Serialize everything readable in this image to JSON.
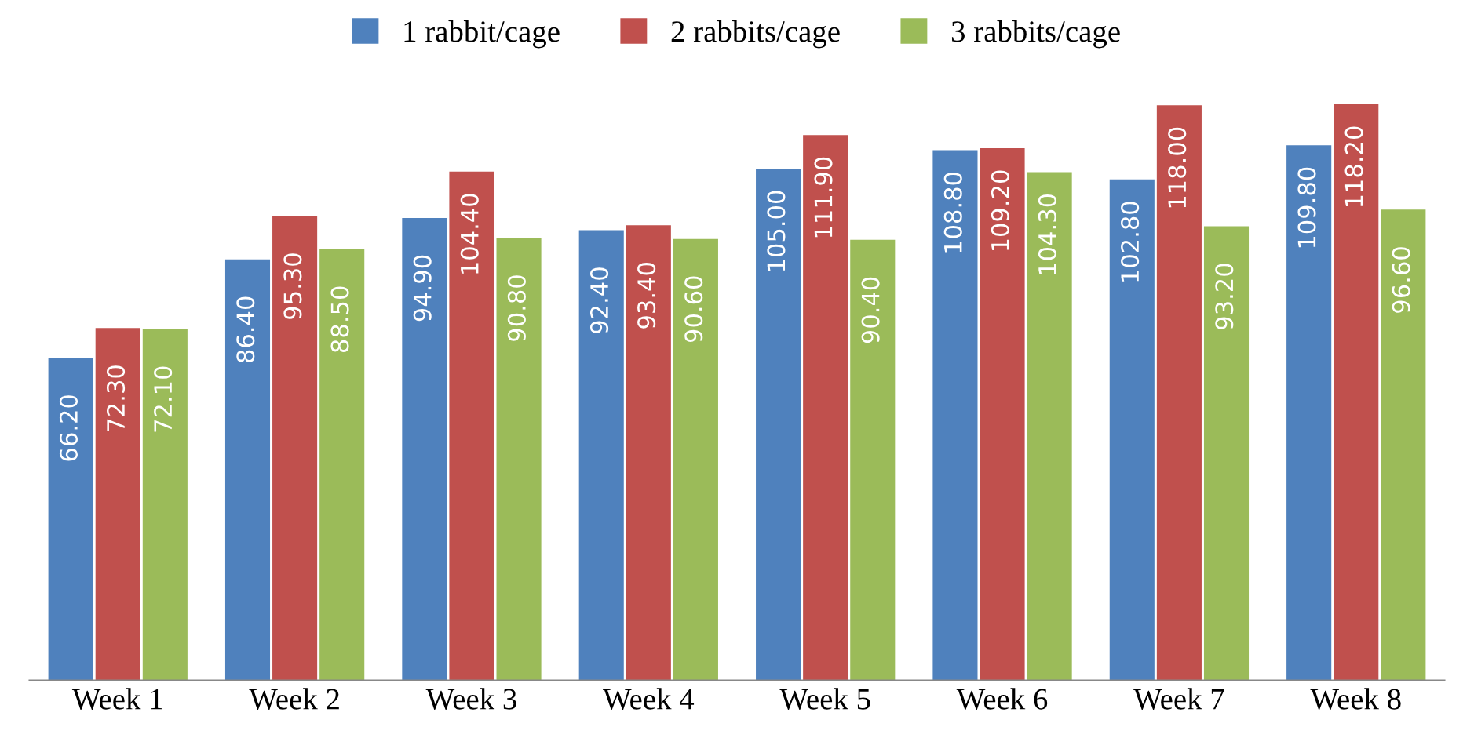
{
  "chart_data": {
    "type": "bar",
    "categories": [
      "Week 1",
      "Week 2",
      "Week 3",
      "Week 4",
      "Week 5",
      "Week 6",
      "Week 7",
      "Week 8"
    ],
    "series": [
      {
        "name": "1 rabbit/cage",
        "color": "#4f81bd",
        "values": [
          66.2,
          86.4,
          94.9,
          92.4,
          105.0,
          108.8,
          102.8,
          109.8
        ],
        "value_labels": [
          "66.20",
          "86.40",
          "94.90",
          "92.40",
          "105.00",
          "108.80",
          "102.80",
          "109.80"
        ]
      },
      {
        "name": "2 rabbits/cage",
        "color": "#c0504d",
        "values": [
          72.3,
          95.3,
          104.4,
          93.4,
          111.9,
          109.2,
          118.0,
          118.2
        ],
        "value_labels": [
          "72.30",
          "95.30",
          "104.40",
          "93.40",
          "111.90",
          "109.20",
          "118.00",
          "118.20"
        ]
      },
      {
        "name": "3 rabbits/cage",
        "color": "#9bbb59",
        "values": [
          72.1,
          88.5,
          90.8,
          90.6,
          90.4,
          104.3,
          93.2,
          96.6
        ],
        "value_labels": [
          "72.10",
          "88.50",
          "90.80",
          "90.60",
          "90.40",
          "104.30",
          "93.20",
          "96.60"
        ]
      }
    ],
    "legend": "top"
  }
}
